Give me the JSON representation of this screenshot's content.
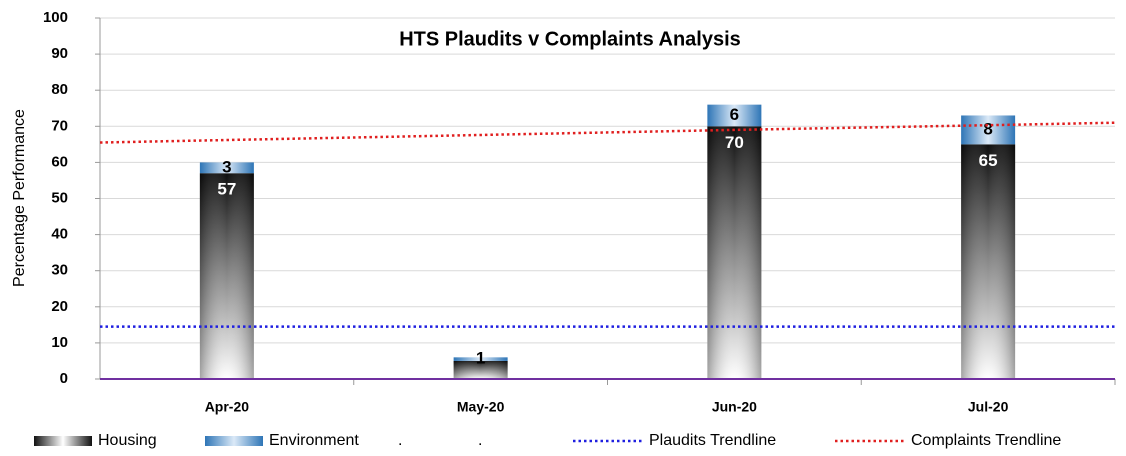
{
  "chart_data": {
    "type": "stacked_bar",
    "title": "HTS Plaudits v Complaints Analysis",
    "y_label": "Percentage Performance",
    "categories": [
      "Apr-20",
      "May-20",
      "Jun-20",
      "Jul-20"
    ],
    "series": [
      {
        "name": "Housing",
        "kind": "bar",
        "color": "#111111",
        "values": [
          57,
          5,
          70,
          65
        ],
        "value_labels": [
          "57",
          null,
          "70",
          "65"
        ]
      },
      {
        "name": "Environment",
        "kind": "bar",
        "color": "#2e75b6",
        "values": [
          3,
          1,
          6,
          8
        ]
      },
      {
        "name": ".",
        "kind": "bar",
        "color": "#ffffff",
        "values": [
          null,
          null,
          null,
          null
        ]
      },
      {
        "name": ".",
        "kind": "bar",
        "color": "#ffffff",
        "values": [
          null,
          null,
          null,
          null
        ]
      },
      {
        "name": "Plaudits Trendline",
        "kind": "trend",
        "color": "#1f1fe0",
        "values": [
          14.5,
          14.5,
          14.5,
          14.5
        ]
      },
      {
        "name": "Complaints Trendline",
        "kind": "trend",
        "color": "#e01f1f",
        "values": [
          66.2,
          67.6,
          69.0,
          70.3
        ]
      }
    ],
    "ylim": [
      0,
      100
    ],
    "yticks": [
      0,
      10,
      20,
      30,
      40,
      50,
      60,
      70,
      80,
      90,
      100
    ],
    "grid": true,
    "legend": "bottom"
  }
}
